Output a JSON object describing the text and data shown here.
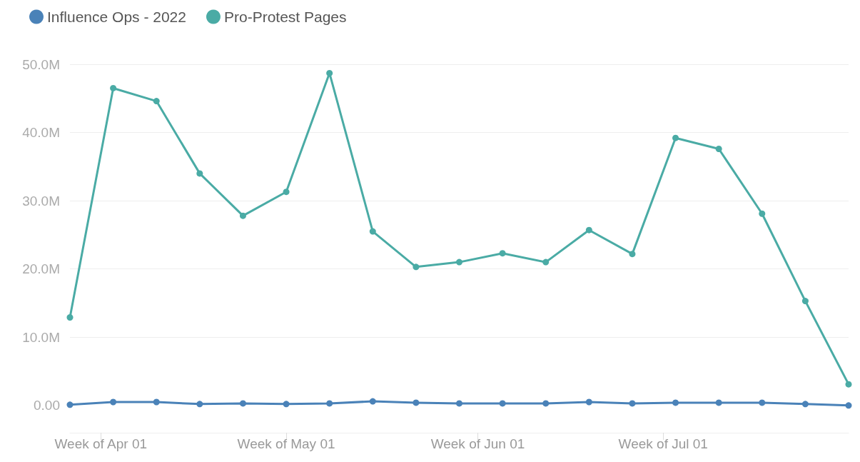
{
  "chart_data": {
    "type": "line",
    "x": [
      "--03-27",
      "--04-03",
      "--04-10",
      "--04-17",
      "--04-24",
      "--05-01",
      "--05-08",
      "--05-15",
      "--05-22",
      "--05-29",
      "--06-05",
      "--06-12",
      "--06-19",
      "--06-26",
      "--07-03",
      "--07-10",
      "--07-17",
      "--07-24",
      "--07-31"
    ],
    "series": [
      {
        "name": "Influence Ops - 2022",
        "color": "#4a82b8",
        "values": [
          100000,
          500000,
          500000,
          200000,
          300000,
          200000,
          300000,
          600000,
          400000,
          300000,
          300000,
          300000,
          500000,
          300000,
          400000,
          400000,
          400000,
          200000,
          0
        ]
      },
      {
        "name": "Pro-Protest Pages",
        "color": "#4aaba5",
        "values": [
          12900000,
          46500000,
          44600000,
          34000000,
          27800000,
          31300000,
          48700000,
          25500000,
          20300000,
          21000000,
          22300000,
          21000000,
          25700000,
          22200000,
          39200000,
          37600000,
          28100000,
          15300000,
          3100000
        ]
      }
    ],
    "xlim": [
      "--03-27",
      "--07-31"
    ],
    "xticks": [
      {
        "value": "--04-01",
        "label": "Week of Apr 01"
      },
      {
        "value": "--05-01",
        "label": "Week of May 01"
      },
      {
        "value": "--06-01",
        "label": "Week of Jun 01"
      },
      {
        "value": "--07-01",
        "label": "Week of Jul 01"
      }
    ],
    "ylim": [
      -4000000,
      50000000
    ],
    "yticks": [
      {
        "value": 0,
        "label": "0.00"
      },
      {
        "value": 10000000,
        "label": "10.0M"
      },
      {
        "value": 20000000,
        "label": "20.0M"
      },
      {
        "value": 30000000,
        "label": "30.0M"
      },
      {
        "value": 40000000,
        "label": "40.0M"
      },
      {
        "value": 50000000,
        "label": "50.0M"
      }
    ],
    "grid": "y",
    "legend": "top left",
    "marker": "circle",
    "line_style": "solid"
  }
}
